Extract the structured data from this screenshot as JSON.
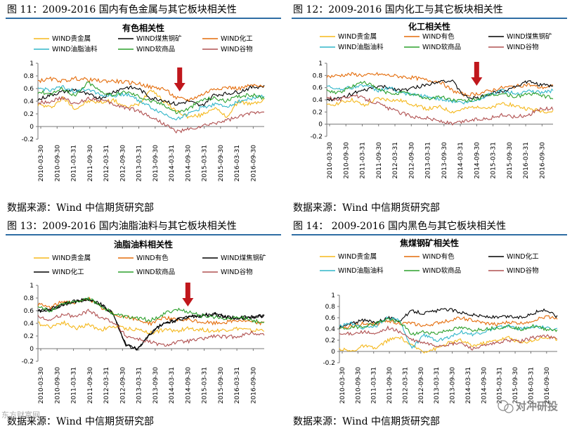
{
  "figures": [
    {
      "fig_title": "图 11：2009-2016 国内有色金属与其它板块相关性",
      "source": "数据来源：Wind  中信期货研究部",
      "chart_data": {
        "type": "line",
        "title": "有色相关性",
        "ylim": [
          -0.2,
          1
        ],
        "yticks": [
          "-0.2",
          "0",
          "0.2",
          "0.4",
          "0.6",
          "0.8",
          "1"
        ],
        "xticks": [
          "2010-03-30",
          "2010-09-30",
          "2011-03-31",
          "2011-09-30",
          "2012-03-31",
          "2012-09-30",
          "2013-03-31",
          "2013-09-30",
          "2014-03-31",
          "2014-09-30",
          "2015-03-31",
          "2015-09-30",
          "2016-03-31",
          "2016-09-30"
        ],
        "annotation_arrow_at": "2014-06-30",
        "series": [
          {
            "name": "WIND贵金属",
            "color": "#f5b81c",
            "values": [
              0.35,
              0.3,
              0.45,
              0.28,
              0.4,
              0.38,
              0.42,
              0.3,
              0.35,
              0.6,
              0.4,
              0.25,
              0.15,
              0.18,
              0.3,
              0.15,
              0.4,
              0.35,
              0.42
            ]
          },
          {
            "name": "WIND煤焦钢矿",
            "color": "#000000",
            "values": [
              0.42,
              0.5,
              0.55,
              0.58,
              0.5,
              0.45,
              0.55,
              0.62,
              0.6,
              0.45,
              0.42,
              0.35,
              0.4,
              0.32,
              0.5,
              0.52,
              0.55,
              0.62,
              0.64
            ]
          },
          {
            "name": "WIND化工",
            "color": "#e46c0a",
            "values": [
              0.72,
              0.75,
              0.72,
              0.76,
              0.74,
              0.72,
              0.72,
              0.7,
              0.68,
              0.62,
              0.6,
              0.45,
              0.42,
              0.5,
              0.6,
              0.62,
              0.6,
              0.65,
              0.62
            ]
          },
          {
            "name": "WIND油脂油料",
            "color": "#31b6c9",
            "values": [
              0.6,
              0.58,
              0.62,
              0.55,
              0.6,
              0.5,
              0.48,
              0.52,
              0.42,
              0.3,
              0.2,
              0.12,
              0.2,
              0.3,
              0.35,
              0.32,
              0.4,
              0.45,
              0.48
            ]
          },
          {
            "name": "WIND软商品",
            "color": "#2ca02c",
            "values": [
              0.55,
              0.52,
              0.6,
              0.48,
              0.7,
              0.55,
              0.5,
              0.55,
              0.48,
              0.4,
              0.35,
              0.22,
              0.28,
              0.42,
              0.45,
              0.4,
              0.48,
              0.5,
              0.45
            ]
          },
          {
            "name": "WIND谷物",
            "color": "#b05050",
            "values": [
              0.38,
              0.4,
              0.45,
              0.35,
              0.45,
              0.42,
              0.35,
              0.3,
              0.25,
              0.15,
              0.05,
              -0.08,
              -0.05,
              0.0,
              0.05,
              0.1,
              0.15,
              0.22,
              0.25
            ]
          }
        ]
      }
    },
    {
      "fig_title": "图 12：2009-2016 国内化工与其它板块相关性",
      "source": "数据来源：Wind  中信期货研究部",
      "chart_data": {
        "type": "line",
        "title": "化工相关性",
        "ylim": [
          -0.2,
          1
        ],
        "yticks": [
          "-0.2",
          "0",
          "0.2",
          "0.4",
          "0.6",
          "0.8",
          "1"
        ],
        "xticks": [
          "2010-03-30",
          "2010-09-30",
          "2011-03-31",
          "2011-09-30",
          "2012-03-31",
          "2012-09-30",
          "2013-03-31",
          "2013-09-30",
          "2014-03-31",
          "2014-09-30",
          "2015-03-31",
          "2015-09-30",
          "2016-03-31",
          "2016-09-30"
        ],
        "annotation_arrow_at": "2014-09-30",
        "series": [
          {
            "name": "WIND贵金属",
            "color": "#f5b81c",
            "values": [
              0.3,
              0.35,
              0.4,
              0.3,
              0.42,
              0.4,
              0.38,
              0.32,
              0.25,
              0.28,
              0.2,
              0.25,
              0.3,
              0.25,
              0.35,
              0.3,
              0.25,
              0.22,
              0.2
            ]
          },
          {
            "name": "WIND有色",
            "color": "#e46c0a",
            "values": [
              0.78,
              0.8,
              0.82,
              0.8,
              0.82,
              0.8,
              0.78,
              0.76,
              0.72,
              0.7,
              0.55,
              0.48,
              0.5,
              0.55,
              0.6,
              0.62,
              0.65,
              0.6,
              0.62
            ]
          },
          {
            "name": "WIND煤焦钢矿",
            "color": "#000000",
            "values": [
              0.4,
              0.42,
              0.5,
              0.55,
              0.62,
              0.6,
              0.55,
              0.6,
              0.65,
              0.72,
              0.7,
              0.45,
              0.42,
              0.5,
              0.55,
              0.62,
              0.7,
              0.65,
              0.62
            ]
          },
          {
            "name": "WIND油脂油料",
            "color": "#31b6c9",
            "values": [
              0.62,
              0.58,
              0.6,
              0.65,
              0.55,
              0.6,
              0.5,
              0.48,
              0.45,
              0.42,
              0.38,
              0.35,
              0.4,
              0.5,
              0.55,
              0.5,
              0.55,
              0.52,
              0.55
            ]
          },
          {
            "name": "WIND软商品",
            "color": "#2ca02c",
            "values": [
              0.55,
              0.52,
              0.62,
              0.7,
              0.58,
              0.5,
              0.52,
              0.48,
              0.42,
              0.45,
              0.4,
              0.38,
              0.42,
              0.48,
              0.5,
              0.45,
              0.5,
              0.48,
              0.42
            ]
          },
          {
            "name": "WIND谷物",
            "color": "#b05050",
            "values": [
              0.45,
              0.4,
              0.48,
              0.42,
              0.35,
              0.25,
              0.18,
              0.12,
              0.1,
              0.05,
              0.0,
              0.05,
              0.08,
              0.1,
              0.15,
              0.12,
              0.15,
              0.25,
              0.25
            ]
          }
        ]
      }
    },
    {
      "fig_title": "图 13：2009-2016 国内油脂油料与其它板块相关性",
      "source": "数据来源：Wind  中信期货研究部",
      "chart_data": {
        "type": "line",
        "title": "油脂油料相关性",
        "ylim": [
          -0.2,
          1
        ],
        "yticks": [
          "-0.2",
          "0",
          "0.2",
          "0.4",
          "0.6",
          "0.8",
          "1"
        ],
        "xticks": [
          "2010-03-30",
          "2010-09-30",
          "2011-03-31",
          "2011-09-30",
          "2012-03-31",
          "2012-09-30",
          "2013-03-31",
          "2013-09-30",
          "2014-03-31",
          "2014-09-30",
          "2015-03-31",
          "2015-09-30",
          "2016-03-31",
          "2016-09-30"
        ],
        "annotation_arrow_at": "2014-09-30",
        "series": [
          {
            "name": "WIND贵金属",
            "color": "#f5b81c",
            "values": [
              0.4,
              0.35,
              0.42,
              0.32,
              0.38,
              0.3,
              0.35,
              0.32,
              0.3,
              0.25,
              0.3,
              0.28,
              0.32,
              0.3,
              0.28,
              0.3,
              0.32,
              0.28,
              0.3
            ]
          },
          {
            "name": "WIND有色",
            "color": "#e46c0a",
            "values": [
              0.7,
              0.65,
              0.75,
              0.72,
              0.8,
              0.65,
              0.55,
              0.5,
              0.45,
              0.4,
              0.5,
              0.45,
              0.45,
              0.42,
              0.4,
              0.42,
              0.45,
              0.42,
              0.4
            ]
          },
          {
            "name": "WIND煤焦钢矿",
            "color": "#000000",
            "values": [
              0.6,
              0.62,
              0.7,
              0.75,
              0.78,
              0.7,
              0.55,
              0.05,
              0.0,
              0.25,
              0.4,
              0.45,
              0.5,
              0.52,
              0.55,
              0.5,
              0.48,
              0.5,
              0.52
            ]
          },
          {
            "name": "WIND化工",
            "color": "#000000",
            "values": [
              0.6,
              0.62,
              0.7,
              0.75,
              0.78,
              0.7,
              0.55,
              0.05,
              0.0,
              0.25,
              0.4,
              0.45,
              0.5,
              0.52,
              0.55,
              0.5,
              0.48,
              0.5,
              0.52
            ]
          },
          {
            "name": "WIND软商品",
            "color": "#2ca02c",
            "values": [
              0.65,
              0.6,
              0.72,
              0.75,
              0.8,
              0.68,
              0.55,
              0.5,
              0.48,
              0.45,
              0.55,
              0.62,
              0.58,
              0.52,
              0.5,
              0.48,
              0.5,
              0.45,
              0.42
            ]
          },
          {
            "name": "WIND谷物",
            "color": "#b05050",
            "values": [
              0.5,
              0.45,
              0.55,
              0.5,
              0.6,
              0.5,
              0.42,
              0.2,
              0.15,
              0.1,
              0.05,
              0.1,
              0.12,
              0.15,
              0.2,
              0.18,
              0.2,
              0.25,
              0.22
            ]
          }
        ]
      }
    },
    {
      "fig_title": "图 14：  2009-2016 国内黑色与其它板块相关性",
      "source": "数据来源：Wind  中信期货研究部",
      "chart_data": {
        "type": "line",
        "title": "焦煤钢矿相关性",
        "ylim": [
          -0.2,
          1
        ],
        "yticks": [
          "-0.2",
          "0",
          "0.2",
          "0.4",
          "0.6",
          "0.8",
          "1"
        ],
        "xticks": [
          "2010-03-30",
          "2010-09-30",
          "2011-03-31",
          "2011-09-30",
          "2012-03-31",
          "2012-09-30",
          "2013-03-31",
          "2013-09-30",
          "2014-03-31",
          "2014-09-30",
          "2015-03-31",
          "2015-09-30",
          "2016-03-31",
          "2016-09-30"
        ],
        "series": [
          {
            "name": "WIND贵金属",
            "color": "#f5b81c",
            "values": [
              0.05,
              0.0,
              0.1,
              0.05,
              0.2,
              0.25,
              0.1,
              0.0,
              0.05,
              0.15,
              0.2,
              0.1,
              0.15,
              0.2,
              0.25,
              0.15,
              0.2,
              0.25,
              0.22
            ]
          },
          {
            "name": "WIND有色",
            "color": "#e46c0a",
            "values": [
              0.42,
              0.45,
              0.5,
              0.48,
              0.55,
              0.5,
              0.5,
              0.45,
              0.5,
              0.55,
              0.6,
              0.55,
              0.5,
              0.48,
              0.52,
              0.5,
              0.55,
              0.62,
              0.6
            ]
          },
          {
            "name": "WIND化工",
            "color": "#000000",
            "values": [
              0.42,
              0.5,
              0.55,
              0.52,
              0.6,
              0.55,
              0.72,
              0.68,
              0.72,
              0.75,
              0.7,
              0.65,
              0.62,
              0.6,
              0.62,
              0.6,
              0.68,
              0.75,
              0.62
            ]
          },
          {
            "name": "WIND油脂油料",
            "color": "#31b6c9",
            "values": [
              0.45,
              0.5,
              0.42,
              0.45,
              0.6,
              0.55,
              0.05,
              0.3,
              0.2,
              0.25,
              0.35,
              0.3,
              0.35,
              0.42,
              0.45,
              0.4,
              0.45,
              0.42,
              0.4
            ]
          },
          {
            "name": "WIND软商品",
            "color": "#2ca02c",
            "values": [
              0.4,
              0.42,
              0.45,
              0.5,
              0.58,
              0.52,
              0.3,
              0.35,
              0.32,
              0.38,
              0.42,
              0.38,
              0.4,
              0.42,
              0.45,
              0.4,
              0.45,
              0.4,
              0.38
            ]
          },
          {
            "name": "WIND谷物",
            "color": "#b05050",
            "values": [
              0.3,
              0.32,
              0.35,
              0.3,
              0.42,
              0.35,
              0.2,
              0.15,
              0.1,
              0.12,
              0.15,
              0.05,
              0.1,
              0.15,
              0.2,
              0.18,
              0.25,
              0.28,
              0.22
            ]
          }
        ]
      }
    }
  ],
  "watermark_left": "东方财富网",
  "watermark_right": "对冲研投"
}
